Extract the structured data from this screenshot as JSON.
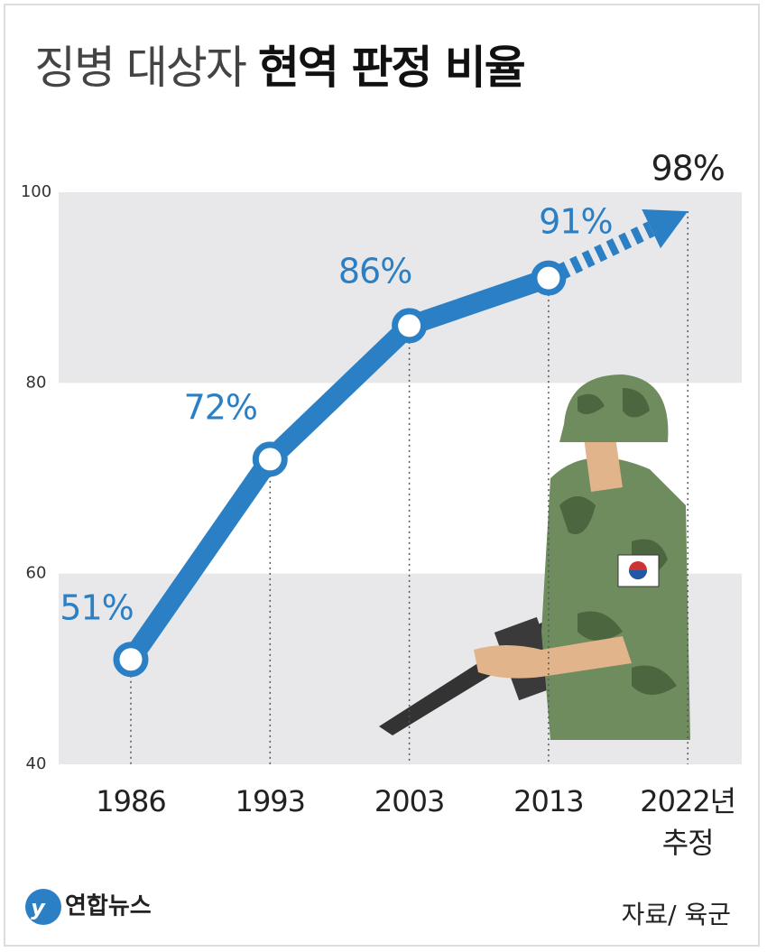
{
  "chart_data": {
    "type": "line",
    "title": "징병 대상자",
    "title_emphasis": "현역 판정 비율",
    "categories": [
      "1986",
      "1993",
      "2003",
      "2013",
      "2022년 추정"
    ],
    "values": [
      51,
      72,
      86,
      91,
      98
    ],
    "value_labels": [
      "51%",
      "72%",
      "86%",
      "91%",
      "98%"
    ],
    "color": "#2b80c5",
    "projection_label_color": "#222222",
    "dashed_last_segment": true,
    "ylim": [
      40,
      100
    ],
    "yticks": [
      40,
      60,
      80,
      100
    ],
    "banded": true,
    "band_color": "#e8e8ea",
    "logo": "연합뉴스",
    "source": "자료/ 육군"
  }
}
